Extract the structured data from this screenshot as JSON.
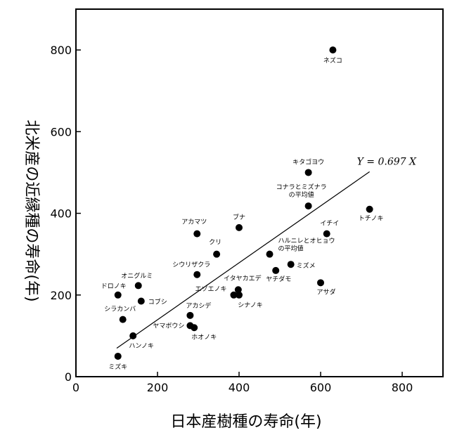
{
  "chart_data": {
    "type": "scatter",
    "xlabel": "日本産樹種の寿命(年)",
    "ylabel": "北米産の近縁種の寿命(年)",
    "xlim": [
      0,
      900
    ],
    "ylim": [
      0,
      900
    ],
    "xticks": [
      "0",
      "200",
      "400",
      "600",
      "800"
    ],
    "yticks": [
      "0",
      "200",
      "400",
      "600",
      "800"
    ],
    "grid": false,
    "marker_color": "#000000",
    "points": [
      {
        "x": 630,
        "y": 800,
        "label": "ネズコ"
      },
      {
        "x": 570,
        "y": 500,
        "label": "キタゴヨウ"
      },
      {
        "x": 570,
        "y": 418,
        "label": "コナラとミズナラ\nの平均値"
      },
      {
        "x": 720,
        "y": 410,
        "label": "トチノキ"
      },
      {
        "x": 400,
        "y": 365,
        "label": "ブナ"
      },
      {
        "x": 297,
        "y": 350,
        "label": "アカマツ"
      },
      {
        "x": 615,
        "y": 350,
        "label": "イチイ"
      },
      {
        "x": 345,
        "y": 300,
        "label": "クリ"
      },
      {
        "x": 475,
        "y": 300,
        "label": "ハルニレとオヒョウ\nの平均値"
      },
      {
        "x": 527,
        "y": 275,
        "label": "ミズメ"
      },
      {
        "x": 490,
        "y": 260,
        "label": "ヤチダモ"
      },
      {
        "x": 297,
        "y": 250,
        "label": "シウリザクラ"
      },
      {
        "x": 600,
        "y": 230,
        "label": "アサダ"
      },
      {
        "x": 153,
        "y": 223,
        "label": "オニグルミ"
      },
      {
        "x": 398,
        "y": 213,
        "label": "イタヤカエデ"
      },
      {
        "x": 103,
        "y": 200,
        "label": "ドロノキ"
      },
      {
        "x": 387,
        "y": 200,
        "label": "エゾエノキ"
      },
      {
        "x": 400,
        "y": 200,
        "label": "シナノキ"
      },
      {
        "x": 160,
        "y": 185,
        "label": "コブシ"
      },
      {
        "x": 280,
        "y": 150,
        "label": "アカシデ"
      },
      {
        "x": 115,
        "y": 140,
        "label": "シラカンバ"
      },
      {
        "x": 280,
        "y": 125,
        "label": "ヤマボウシ"
      },
      {
        "x": 290,
        "y": 120,
        "label": "ホオノキ"
      },
      {
        "x": 140,
        "y": 100,
        "label": "ハンノキ"
      },
      {
        "x": 103,
        "y": 50,
        "label": "ミズキ"
      }
    ],
    "trendline": {
      "equation": "Y = 0.697 X",
      "slope": 0.697,
      "x_start": 100,
      "x_end": 720
    }
  }
}
